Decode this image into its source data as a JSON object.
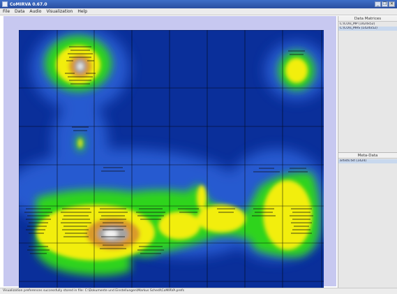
{
  "window": {
    "title": "CoMIRVA 0.67.0",
    "buttons": [
      "_",
      "❐",
      "✕"
    ]
  },
  "menu": [
    "File",
    "Data",
    "Audio",
    "Visualization",
    "Help"
  ],
  "sidebar": {
    "data_matrices": {
      "header": "Data Matrices",
      "items": [
        "C:\\CO\\s_MP (1424x52)",
        "C:\\CO\\s_MHS (1424x52)"
      ]
    },
    "meta_data": {
      "header": "Meta-Data",
      "items": [
        "artists.txt (1424)"
      ]
    }
  },
  "status": "Visualization preferences successfully stored in file: C:\\Dokumente und Einstellungen\\Markus Schedl\\CoMIRVA.prefs",
  "colors": {
    "background": "#c7c8f0",
    "deep_blue": "#0a2f9a",
    "green": "#2fd41c",
    "yellow": "#f2ee0e",
    "orange": "#d99a2a"
  }
}
